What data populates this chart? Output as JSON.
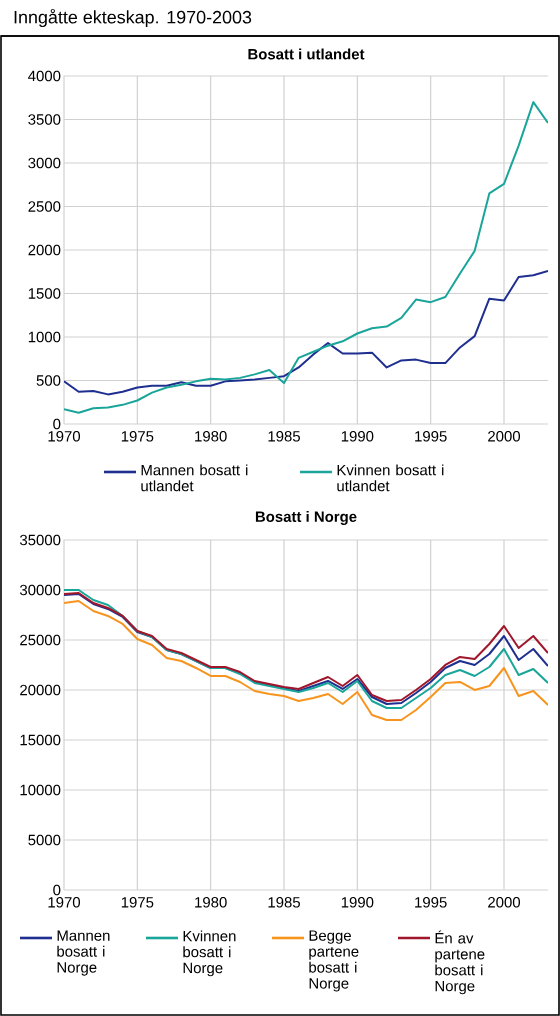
{
  "chart_data": [
    {
      "type": "line",
      "title": "Inngåtte ekteskap. 1970-2003",
      "subtitle": "Bosatt i utlandet",
      "x": [
        1970,
        1971,
        1972,
        1973,
        1974,
        1975,
        1976,
        1977,
        1978,
        1979,
        1980,
        1981,
        1982,
        1983,
        1984,
        1985,
        1986,
        1987,
        1988,
        1989,
        1990,
        1991,
        1992,
        1993,
        1994,
        1995,
        1996,
        1997,
        1998,
        1999,
        2000,
        2001,
        2002,
        2003
      ],
      "series": [
        {
          "name": "Mannen bosatt i utlandet",
          "color": "#1f2f8f",
          "values": [
            490,
            370,
            380,
            340,
            370,
            420,
            440,
            440,
            480,
            440,
            440,
            490,
            500,
            510,
            530,
            550,
            650,
            800,
            930,
            810,
            810,
            820,
            650,
            730,
            740,
            700,
            700,
            880,
            1010,
            1440,
            1420,
            1690,
            1710,
            1760
          ]
        },
        {
          "name": "Kvinnen bosatt i utlandet",
          "color": "#1aa59a",
          "values": [
            170,
            130,
            180,
            190,
            220,
            270,
            360,
            420,
            450,
            490,
            520,
            510,
            530,
            570,
            620,
            470,
            760,
            830,
            900,
            950,
            1040,
            1100,
            1120,
            1220,
            1430,
            1400,
            1460,
            1730,
            1990,
            2650,
            2760,
            3200,
            3700,
            3460
          ]
        }
      ],
      "xlim": [
        1970,
        2003
      ],
      "xticks": [
        1970,
        1975,
        1980,
        1985,
        1990,
        1995,
        2000
      ],
      "ylim": [
        0,
        4000
      ],
      "yticks": [
        0,
        500,
        1000,
        1500,
        2000,
        2500,
        3000,
        3500,
        4000
      ],
      "grid": true,
      "legend": "bottom"
    },
    {
      "type": "line",
      "title": "Bosatt i Norge",
      "x": [
        1970,
        1971,
        1972,
        1973,
        1974,
        1975,
        1976,
        1977,
        1978,
        1979,
        1980,
        1981,
        1982,
        1983,
        1984,
        1985,
        1986,
        1987,
        1988,
        1989,
        1990,
        1991,
        1992,
        1993,
        1994,
        1995,
        1996,
        1997,
        1998,
        1999,
        2000,
        2001,
        2002,
        2003
      ],
      "series": [
        {
          "name": "Mannen bosatt i Norge",
          "color": "#1f2f8f",
          "values": [
            29500,
            29600,
            28600,
            28100,
            27300,
            25800,
            25300,
            24000,
            23600,
            22900,
            22200,
            22200,
            21700,
            20800,
            20500,
            20200,
            19900,
            20400,
            20900,
            20100,
            21100,
            19300,
            18600,
            18700,
            19700,
            20800,
            22200,
            22900,
            22500,
            23600,
            25400,
            23000,
            24100,
            22400
          ]
        },
        {
          "name": "Kvinnen bosatt i Norge",
          "color": "#1aa59a",
          "values": [
            30000,
            30000,
            29000,
            28500,
            27400,
            25900,
            25300,
            24000,
            23600,
            22900,
            22200,
            22200,
            21600,
            20700,
            20400,
            20100,
            19800,
            20200,
            20700,
            19800,
            20900,
            18900,
            18200,
            18200,
            19200,
            20200,
            21500,
            22000,
            21400,
            22300,
            24100,
            21500,
            22100,
            20700
          ]
        },
        {
          "name": "Begge partene bosatt i Norge",
          "color": "#f7941d",
          "values": [
            28700,
            28900,
            27900,
            27400,
            26600,
            25100,
            24500,
            23200,
            22900,
            22200,
            21400,
            21400,
            20800,
            19900,
            19600,
            19400,
            18900,
            19200,
            19600,
            18600,
            19800,
            17500,
            17000,
            17000,
            18000,
            19300,
            20700,
            20800,
            20000,
            20400,
            22200,
            19400,
            19900,
            18500
          ]
        },
        {
          "name": "Én av partene bosatt i Norge",
          "color": "#a0162a",
          "values": [
            29600,
            29700,
            28700,
            28200,
            27400,
            25900,
            25400,
            24100,
            23700,
            23000,
            22300,
            22300,
            21800,
            20900,
            20600,
            20300,
            20100,
            20700,
            21300,
            20400,
            21500,
            19500,
            18900,
            19000,
            20000,
            21100,
            22500,
            23300,
            23100,
            24600,
            26400,
            24200,
            25400,
            23700
          ]
        }
      ],
      "xlim": [
        1970,
        2003
      ],
      "xticks": [
        1970,
        1975,
        1980,
        1985,
        1990,
        1995,
        2000
      ],
      "ylim": [
        0,
        35000
      ],
      "yticks": [
        0,
        5000,
        10000,
        15000,
        20000,
        25000,
        30000,
        35000
      ],
      "grid": true,
      "legend": "bottom"
    }
  ]
}
